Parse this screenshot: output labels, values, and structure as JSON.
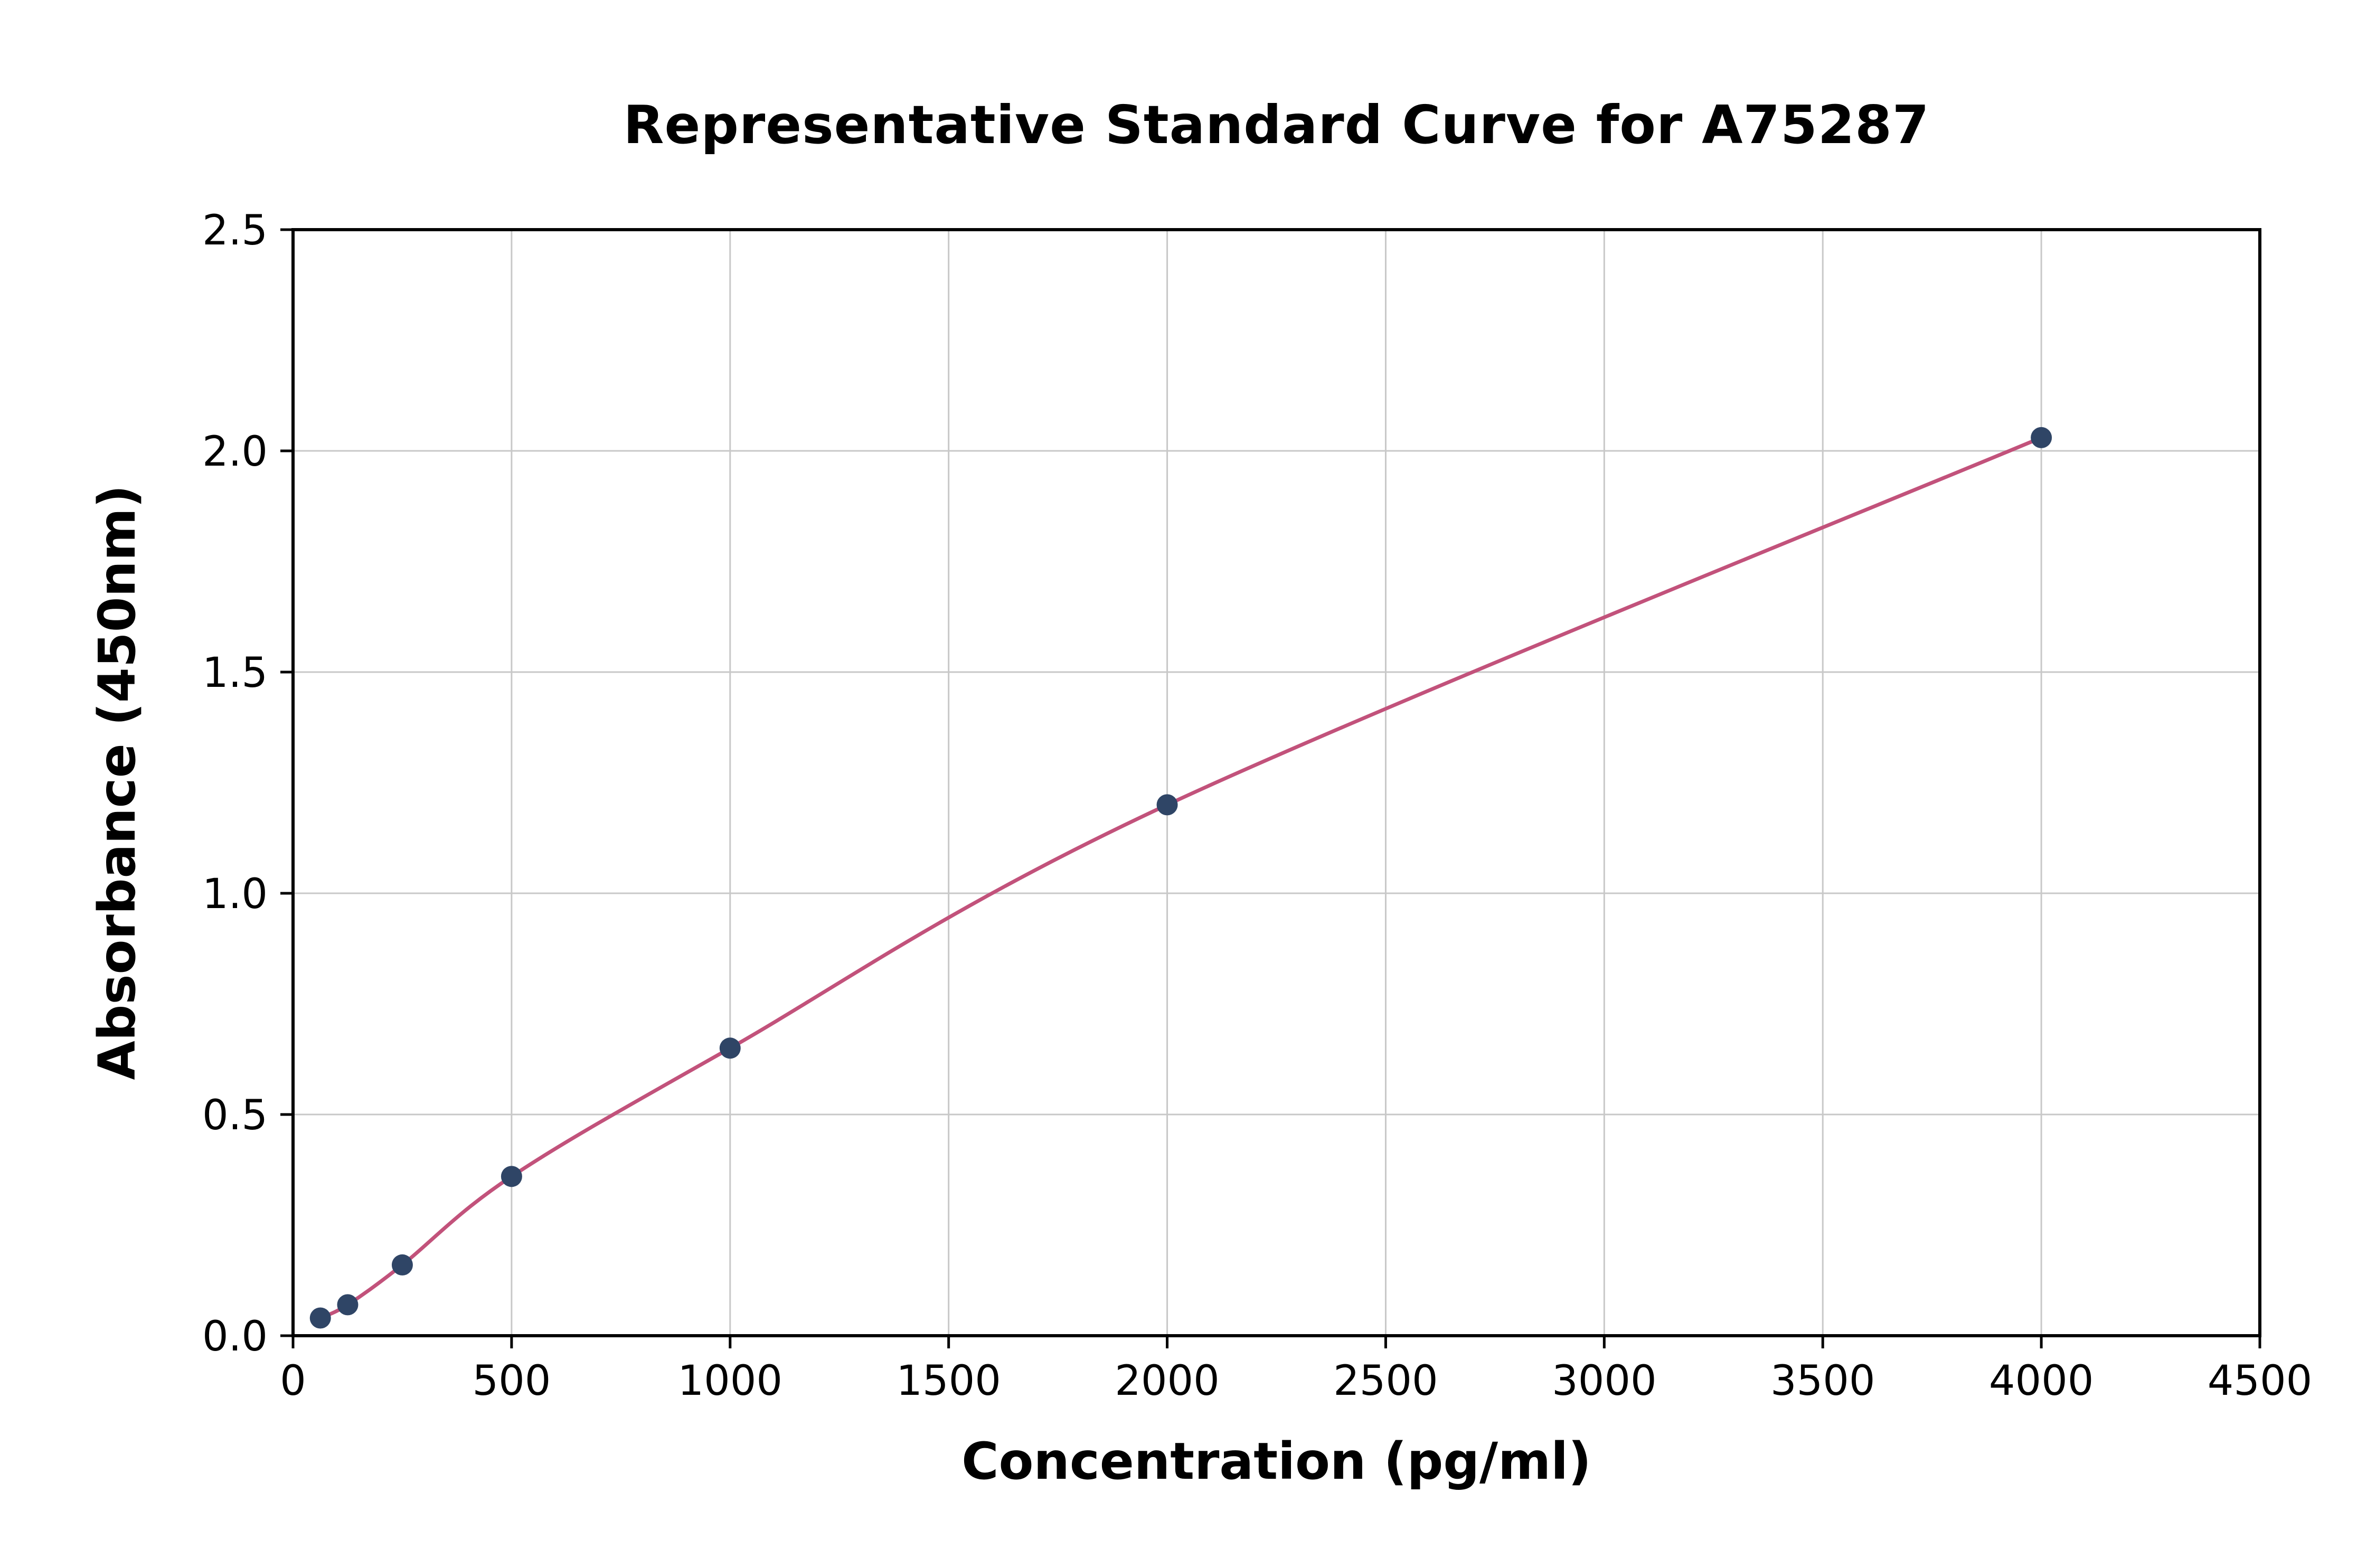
{
  "chart_data": {
    "type": "line",
    "title": "Representative Standard Curve for A75287",
    "xlabel": "Concentration (pg/ml)",
    "ylabel": "Absorbance (450nm)",
    "xlim": [
      0,
      4500
    ],
    "ylim": [
      0,
      2.5
    ],
    "x_ticks": [
      0,
      500,
      1000,
      1500,
      2000,
      2500,
      3000,
      3500,
      4000,
      4500
    ],
    "x_tick_labels": [
      "0",
      "500",
      "1000",
      "1500",
      "2000",
      "2500",
      "3000",
      "3500",
      "4000",
      "4500"
    ],
    "y_ticks": [
      0.0,
      0.5,
      1.0,
      1.5,
      2.0,
      2.5
    ],
    "y_tick_labels": [
      "0.0",
      "0.5",
      "1.0",
      "1.5",
      "2.0",
      "2.5"
    ],
    "grid": true,
    "legend": "none",
    "points": {
      "x": [
        62.5,
        125,
        250,
        500,
        1000,
        2000,
        4000
      ],
      "y": [
        0.04,
        0.07,
        0.16,
        0.36,
        0.65,
        1.2,
        2.03
      ]
    },
    "colors": {
      "curve": "#c2527b",
      "point": "#2f4566",
      "grid": "#c8c8c8",
      "axis": "#000000",
      "background": "#ffffff"
    }
  }
}
